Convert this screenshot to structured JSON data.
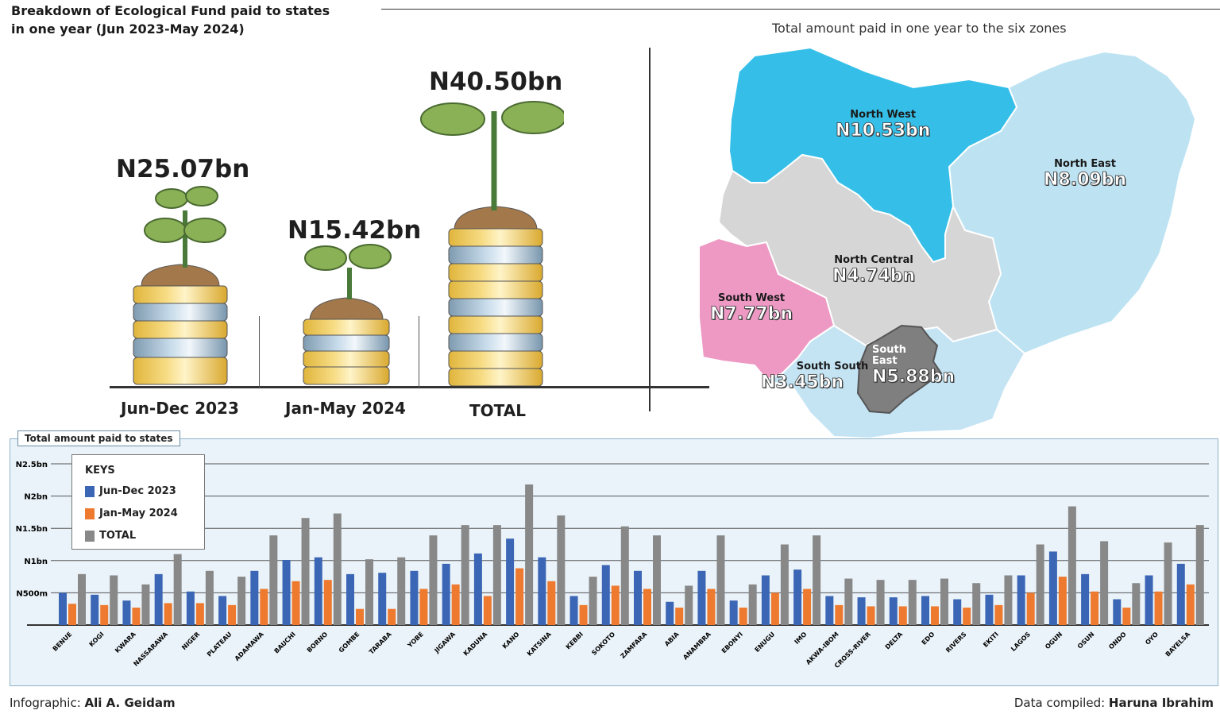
{
  "header": {
    "title_line1": "Breakdown of Ecological Fund paid to states",
    "title_line2": "in one year (Jun 2023-May 2024)"
  },
  "periods": [
    {
      "amount": "N25.07bn",
      "label": "Jun-Dec 2023"
    },
    {
      "amount": "N15.42bn",
      "label": "Jan-May 2024"
    },
    {
      "amount": "N40.50bn",
      "label": "TOTAL"
    }
  ],
  "map": {
    "title": "Total amount paid in one year to the six zones",
    "zones": [
      {
        "name": "North West",
        "value": "N10.53bn",
        "color": "#35bfe8"
      },
      {
        "name": "North East",
        "value": "N8.09bn",
        "color": "#bde3f2"
      },
      {
        "name": "North Central",
        "value": "N4.74bn",
        "color": "#d6d6d6"
      },
      {
        "name": "South West",
        "value": "N7.77bn",
        "color": "#ee98c4"
      },
      {
        "name": "South South",
        "value": "N3.45bn",
        "color": "#c4e4f4"
      },
      {
        "name": "South East",
        "value": "N5.88bn",
        "color": "#7f7f7f"
      }
    ]
  },
  "panel": {
    "title": "Total amount paid to states"
  },
  "keys": {
    "title": "KEYS"
  },
  "colors": {
    "jun_dec": "#3b66b5",
    "jan_may": "#ee7a30",
    "total": "#888888"
  },
  "chart_data": {
    "type": "bar",
    "title": "Total amount paid to states",
    "y_tick_labels": [
      "N500m",
      "N1bn",
      "N1.5bn",
      "N2bn",
      "N2.5bn"
    ],
    "y_ticks": [
      0.5,
      1,
      1.5,
      2,
      2.5
    ],
    "ylim": [
      0,
      2.5
    ],
    "grid": true,
    "legend": "top-left",
    "categories": [
      "BENUE",
      "KOGI",
      "KWARA",
      "NASSARAWA",
      "NIGER",
      "PLATEAU",
      "ADAMAWA",
      "BAUCHI",
      "BORNO",
      "GOMBE",
      "TARABA",
      "YOBE",
      "JIGAWA",
      "KADUNA",
      "KANO",
      "KATSINA",
      "KEBBI",
      "SOKOTO",
      "ZAMFARA",
      "ABIA",
      "ANAMBRA",
      "EBONYI",
      "ENUGU",
      "IMO",
      "AKWA-IBOM",
      "CROSS-RIVER",
      "DELTA",
      "EDO",
      "RIVERS",
      "EKITI",
      "LAGOS",
      "OGUN",
      "OSUN",
      "ONDO",
      "OYO",
      "BAYELSA"
    ],
    "series": [
      {
        "name": "Jun-Dec 2023",
        "values": [
          0.5,
          0.47,
          0.38,
          0.79,
          0.52,
          0.45,
          0.84,
          1.01,
          1.05,
          0.79,
          0.81,
          0.84,
          0.95,
          1.11,
          1.34,
          1.05,
          0.45,
          0.93,
          0.84,
          0.36,
          0.84,
          0.38,
          0.77,
          0.86,
          0.45,
          0.43,
          0.43,
          0.45,
          0.4,
          0.47,
          0.77,
          1.14,
          0.79,
          0.4,
          0.77,
          0.95
        ]
      },
      {
        "name": "Jan-May 2024",
        "values": [
          0.33,
          0.31,
          0.27,
          0.34,
          0.34,
          0.31,
          0.56,
          0.68,
          0.7,
          0.25,
          0.25,
          0.56,
          0.63,
          0.45,
          0.88,
          0.68,
          0.31,
          0.61,
          0.56,
          0.27,
          0.56,
          0.27,
          0.5,
          0.56,
          0.31,
          0.29,
          0.29,
          0.29,
          0.27,
          0.31,
          0.5,
          0.75,
          0.52,
          0.27,
          0.52,
          0.63
        ]
      },
      {
        "name": "TOTAL",
        "values": [
          0.79,
          0.77,
          0.63,
          1.1,
          0.84,
          0.75,
          1.39,
          1.66,
          1.73,
          1.02,
          1.05,
          1.39,
          1.55,
          1.55,
          2.18,
          1.7,
          0.75,
          1.53,
          1.39,
          0.61,
          1.39,
          0.63,
          1.25,
          1.39,
          0.72,
          0.7,
          0.7,
          0.72,
          0.65,
          0.77,
          1.25,
          1.84,
          1.3,
          0.65,
          1.28,
          1.55
        ]
      }
    ]
  },
  "credits": {
    "left_label": "Infographic:",
    "left_name": "Ali A. Geidam",
    "right_label": "Data compiled:",
    "right_name": "Haruna Ibrahim"
  }
}
